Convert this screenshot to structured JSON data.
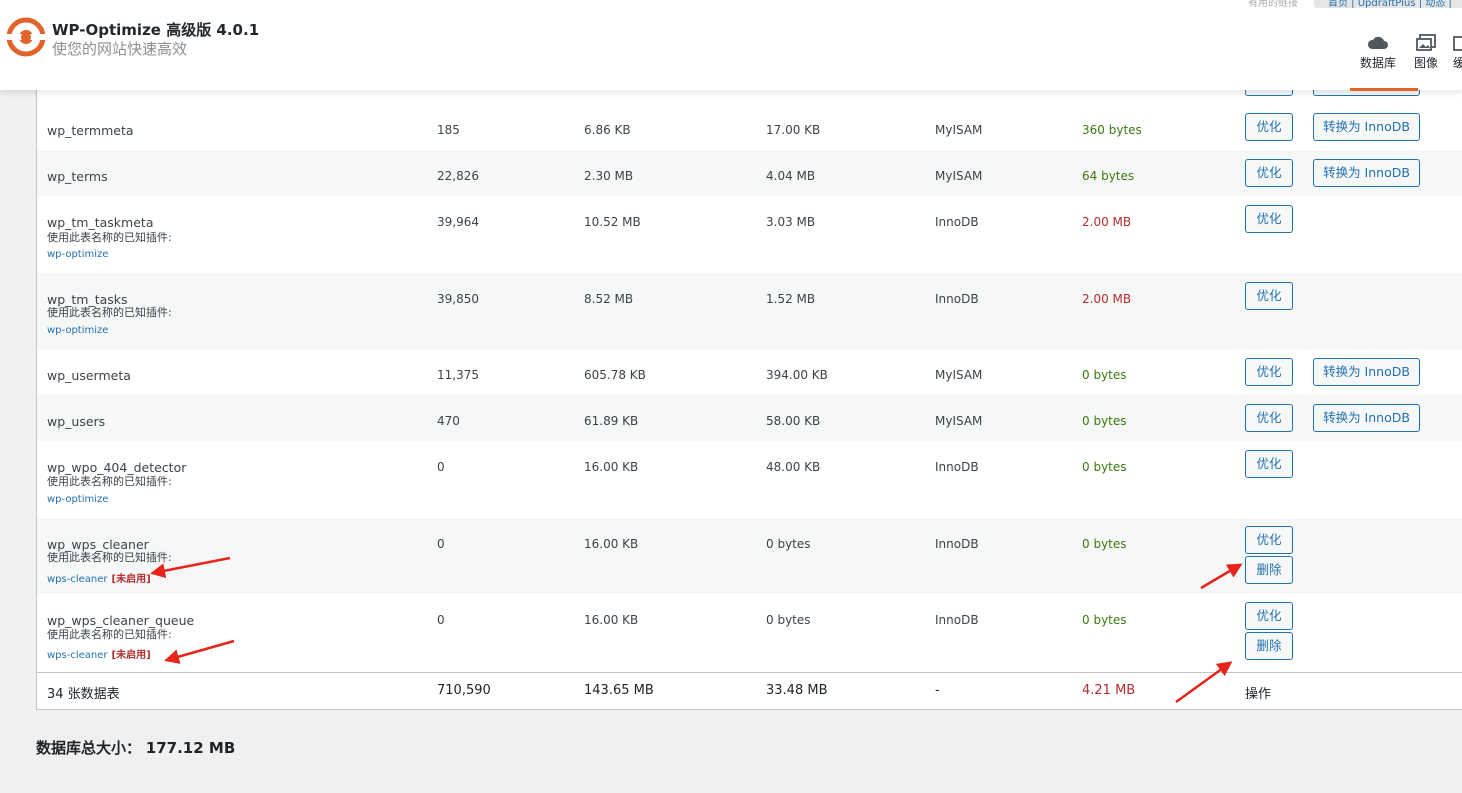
{
  "header": {
    "title": "WP-Optimize 高级版 4.0.1",
    "subtitle": "使您的网站快速高效",
    "top_links": {
      "useful_links": "有用的链接",
      "links": "首页 | UpdraftPlus | 动态 | "
    },
    "nav": [
      {
        "label": "数据库",
        "icon": "cloud-icon",
        "active": true
      },
      {
        "label": "图像",
        "icon": "images-icon",
        "active": false
      },
      {
        "label": "缓",
        "icon": "cache-icon",
        "active": false
      }
    ],
    "accent_color": "#e2642c"
  },
  "table": {
    "rows": [
      {
        "name": "wp_termmeta",
        "records": "185",
        "data_size": "6.86 KB",
        "index_size": "17.00 KB",
        "type": "MyISAM",
        "overhead": "360 bytes",
        "overhead_status": "good",
        "actions": {
          "optimize": "优化",
          "convert": "转换为 InnoDB"
        }
      },
      {
        "name": "wp_terms",
        "records": "22,826",
        "data_size": "2.30 MB",
        "index_size": "4.04 MB",
        "type": "MyISAM",
        "overhead": "64 bytes",
        "overhead_status": "good",
        "actions": {
          "optimize": "优化",
          "convert": "转换为 InnoDB"
        }
      },
      {
        "name": "wp_tm_taskmeta",
        "plugin_note": "使用此表名称的已知插件:",
        "plugin": "wp-optimize",
        "records": "39,964",
        "data_size": "10.52 MB",
        "index_size": "3.03 MB",
        "type": "InnoDB",
        "overhead": "2.00 MB",
        "overhead_status": "bad",
        "actions": {
          "optimize": "优化"
        }
      },
      {
        "name": "wp_tm_tasks",
        "plugin_note": "使用此表名称的已知插件:",
        "plugin": "wp-optimize",
        "records": "39,850",
        "data_size": "8.52 MB",
        "index_size": "1.52 MB",
        "type": "InnoDB",
        "overhead": "2.00 MB",
        "overhead_status": "bad",
        "actions": {
          "optimize": "优化"
        }
      },
      {
        "name": "wp_usermeta",
        "records": "11,375",
        "data_size": "605.78 KB",
        "index_size": "394.00 KB",
        "type": "MyISAM",
        "overhead": "0 bytes",
        "overhead_status": "good",
        "actions": {
          "optimize": "优化",
          "convert": "转换为 InnoDB"
        }
      },
      {
        "name": "wp_users",
        "records": "470",
        "data_size": "61.89 KB",
        "index_size": "58.00 KB",
        "type": "MyISAM",
        "overhead": "0 bytes",
        "overhead_status": "good",
        "actions": {
          "optimize": "优化",
          "convert": "转换为 InnoDB"
        }
      },
      {
        "name": "wp_wpo_404_detector",
        "plugin_note": "使用此表名称的已知插件:",
        "plugin": "wp-optimize",
        "records": "0",
        "data_size": "16.00 KB",
        "index_size": "48.00 KB",
        "type": "InnoDB",
        "overhead": "0 bytes",
        "overhead_status": "good",
        "actions": {
          "optimize": "优化"
        }
      },
      {
        "name": "wp_wps_cleaner",
        "plugin_note": "使用此表名称的已知插件:",
        "plugin": "wps-cleaner",
        "plugin_inactive": "[未启用]",
        "records": "0",
        "data_size": "16.00 KB",
        "index_size": "0 bytes",
        "type": "InnoDB",
        "overhead": "0 bytes",
        "overhead_status": "good",
        "actions": {
          "optimize": "优化",
          "delete": "删除"
        }
      },
      {
        "name": "wp_wps_cleaner_queue",
        "plugin_note": "使用此表名称的已知插件:",
        "plugin": "wps-cleaner",
        "plugin_inactive": "[未启用]",
        "records": "0",
        "data_size": "16.00 KB",
        "index_size": "0 bytes",
        "type": "InnoDB",
        "overhead": "0 bytes",
        "overhead_status": "good",
        "actions": {
          "optimize": "优化",
          "delete": "删除"
        }
      }
    ],
    "footer": {
      "tables": "34 张数据表",
      "records": "710,590",
      "data_size": "143.65 MB",
      "index_size": "33.48 MB",
      "type": "-",
      "overhead": "4.21 MB",
      "actions": "操作"
    }
  },
  "total": {
    "label": "数据库总大小：",
    "value": "177.12 MB"
  },
  "colors": {
    "good": "#3b7a10",
    "bad": "#b32d2e",
    "link": "#2271b1",
    "annotation_arrow": "#e8231a"
  }
}
